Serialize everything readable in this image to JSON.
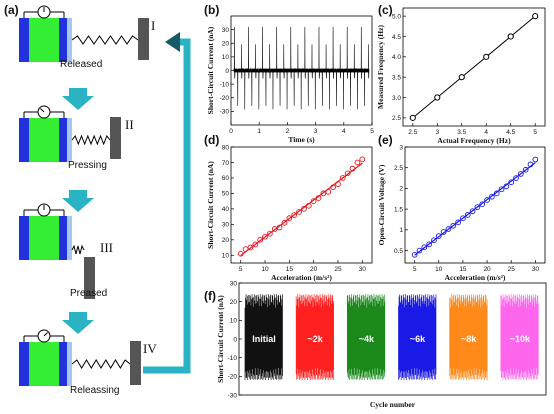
{
  "panel_a": {
    "label": "(a)",
    "states": [
      {
        "roman": "I",
        "caption": "Released"
      },
      {
        "roman": "II",
        "caption": "Pressing"
      },
      {
        "roman": "III",
        "caption": "Preased"
      },
      {
        "roman": "IV",
        "caption": "Releassing"
      }
    ],
    "colors": {
      "green": "#33ee33",
      "blue": "#2233dd",
      "plate": "#555555",
      "arrow": "#2ab3c4"
    }
  },
  "chart_data": [
    {
      "id": "b",
      "label": "(b)",
      "type": "line",
      "ylabel": "Short-Circuit Current (nA)",
      "xlabel": "Time (s)",
      "xlim": [
        0,
        5
      ],
      "ylim": [
        -40,
        40
      ],
      "xticks": [
        0,
        1,
        2,
        3,
        4,
        5
      ],
      "yticks": [
        -30,
        -20,
        -10,
        0,
        10,
        20,
        30
      ],
      "series": [
        {
          "pulse_count": 20,
          "peak_positive": 32,
          "peak_negative": -30,
          "color": "#000000"
        }
      ]
    },
    {
      "id": "c",
      "label": "(c)",
      "type": "line",
      "ylabel": "Measured Frequency (Hz)",
      "xlabel": "Actual Frequency (Hz)",
      "xlim": [
        2.3,
        5.2
      ],
      "ylim": [
        2.3,
        5.2
      ],
      "xticks": [
        2.5,
        3.0,
        3.5,
        4.0,
        4.5,
        5.0
      ],
      "yticks": [
        2.5,
        3.0,
        3.5,
        4.0,
        4.5,
        5.0
      ],
      "x": [
        2.5,
        3.0,
        3.5,
        4.0,
        4.5,
        5.0
      ],
      "y": [
        2.5,
        3.0,
        3.5,
        4.0,
        4.5,
        5.0
      ],
      "color": "#000000"
    },
    {
      "id": "d",
      "label": "(d)",
      "type": "scatter",
      "ylabel": "Short-Circuit Current (nA)",
      "xlabel": "Acceleration (m/s²)",
      "xlim": [
        3,
        32
      ],
      "ylim": [
        5,
        80
      ],
      "xticks": [
        5,
        10,
        15,
        20,
        25,
        30
      ],
      "yticks": [
        10,
        20,
        30,
        40,
        50,
        60,
        70,
        80
      ],
      "x": [
        5,
        6,
        7,
        8,
        9,
        10,
        11,
        12,
        13,
        14,
        15,
        16,
        17,
        18,
        19,
        20,
        21,
        22,
        23,
        24,
        25,
        26,
        27,
        28,
        29,
        30
      ],
      "y": [
        11,
        14,
        15,
        17,
        20,
        22,
        24,
        27,
        28,
        31,
        34,
        36,
        38,
        40,
        42,
        45,
        47,
        50,
        51,
        54,
        56,
        60,
        63,
        66,
        70,
        72
      ],
      "color": "#e8141e"
    },
    {
      "id": "e",
      "label": "(e)",
      "type": "scatter",
      "ylabel": "Open-Circuit Voltage (V)",
      "xlabel": "Acceleration (m/s²)",
      "xlim": [
        3,
        32
      ],
      "ylim": [
        0.2,
        3.0
      ],
      "xticks": [
        5,
        10,
        15,
        20,
        25,
        30
      ],
      "yticks": [
        0.5,
        1.0,
        1.5,
        2.0,
        2.5,
        3.0
      ],
      "x": [
        5,
        6,
        7,
        8,
        9,
        10,
        11,
        12,
        13,
        14,
        15,
        16,
        17,
        18,
        19,
        20,
        21,
        22,
        23,
        24,
        25,
        26,
        27,
        28,
        29,
        30
      ],
      "y": [
        0.4,
        0.5,
        0.58,
        0.65,
        0.75,
        0.85,
        0.95,
        1.02,
        1.1,
        1.18,
        1.28,
        1.36,
        1.45,
        1.55,
        1.62,
        1.72,
        1.8,
        1.88,
        1.98,
        2.05,
        2.15,
        2.25,
        2.35,
        2.45,
        2.58,
        2.7
      ],
      "color": "#1a1ae6"
    },
    {
      "id": "f",
      "label": "(f)",
      "type": "bar",
      "ylabel": "Short-Circuit Current (nA)",
      "xlabel": "Cycle number",
      "ylim": [
        -30,
        30
      ],
      "yticks": [
        -30,
        -20,
        -10,
        0,
        10,
        20,
        30
      ],
      "blocks": [
        {
          "name": "Initial",
          "color": "#111111"
        },
        {
          "name": "~2k",
          "color": "#ff2020"
        },
        {
          "name": "~4k",
          "color": "#1b8a1b"
        },
        {
          "name": "~6k",
          "color": "#1a1ae6"
        },
        {
          "name": "~8k",
          "color": "#ff8a1a"
        },
        {
          "name": "~10k",
          "color": "#ff66ee"
        }
      ],
      "amplitude_max": 24,
      "amplitude_min": -22
    }
  ]
}
